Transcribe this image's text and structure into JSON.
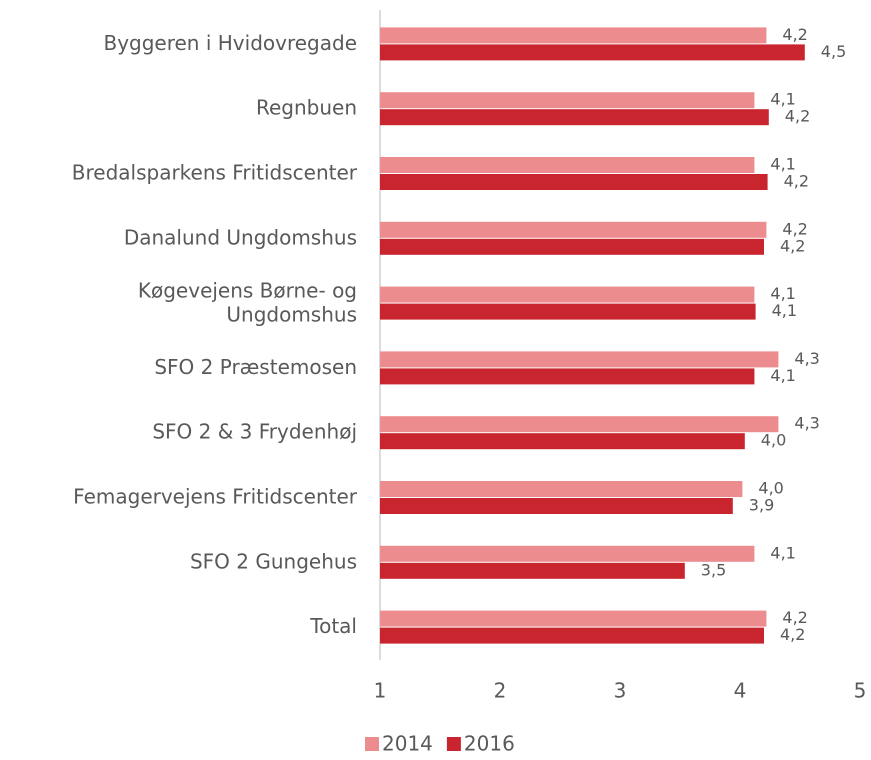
{
  "chart_data": {
    "type": "hbar",
    "categories": [
      "Byggeren i Hvidovregade",
      "Regnbuen",
      "Bredalsparkens Fritidscenter",
      "Danalund Ungdomshus",
      "Køgevejens Børne- og\nUngdomshus",
      "SFO 2 Præstemosen",
      "SFO 2 & 3 Frydenhøj",
      "Femagervejens Fritidscenter",
      "SFO 2 Gungehus",
      "Total"
    ],
    "series": [
      {
        "name": "2014",
        "color": "#ec8c8e",
        "values": [
          4.22,
          4.12,
          4.12,
          4.22,
          4.12,
          4.32,
          4.32,
          4.02,
          4.12,
          4.22
        ],
        "value_labels": [
          "4,2",
          "4,1",
          "4,1",
          "4,2",
          "4,1",
          "4,3",
          "4,3",
          "4,0",
          "4,1",
          "4,2"
        ]
      },
      {
        "name": "2016",
        "color": "#c8252f",
        "values": [
          4.54,
          4.24,
          4.23,
          4.2,
          4.13,
          4.12,
          4.04,
          3.94,
          3.54,
          4.2
        ],
        "value_labels": [
          "4,5",
          "4,2",
          "4,2",
          "4,2",
          "4,1",
          "4,1",
          "4,0",
          "3,9",
          "3,5",
          "4,2"
        ]
      }
    ],
    "xlim": [
      1,
      5
    ],
    "xticks": [
      1,
      2,
      3,
      4,
      5
    ],
    "legend": "bottom"
  }
}
